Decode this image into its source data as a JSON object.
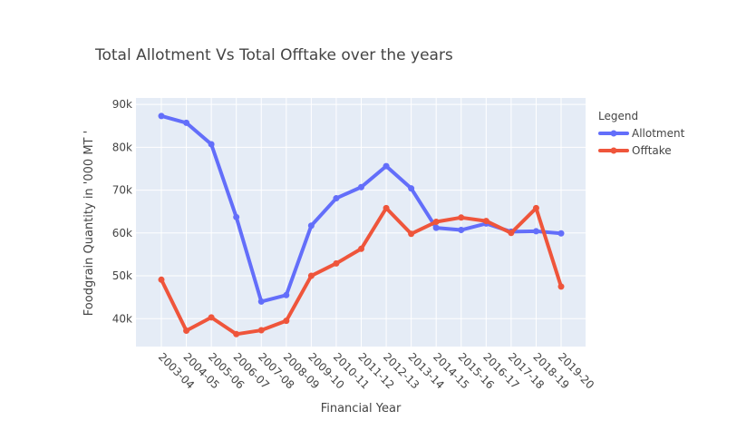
{
  "chart_data": {
    "type": "line",
    "title": "Total Allotment Vs Total Offtake over the years",
    "xlabel": "Financial Year",
    "ylabel": "Foodgrain Quantity in '000 MT '",
    "categories": [
      "2003-04",
      "2004-05",
      "2005-06",
      "2006-07",
      "2007-08",
      "2008-09",
      "2009-10",
      "2010-11",
      "2011-12",
      "2012-13",
      "2013-14",
      "2014-15",
      "2015-16",
      "2016-17",
      "2017-18",
      "2018-19",
      "2019-20"
    ],
    "ylim": [
      33500,
      91500
    ],
    "yticks": [
      {
        "value": 40000,
        "label": "40k"
      },
      {
        "value": 50000,
        "label": "50k"
      },
      {
        "value": 60000,
        "label": "60k"
      },
      {
        "value": 70000,
        "label": "70k"
      },
      {
        "value": 80000,
        "label": "80k"
      },
      {
        "value": 90000,
        "label": "90k"
      }
    ],
    "legend_title": "Legend",
    "legend_position": "top-right",
    "grid": true,
    "series": [
      {
        "name": "Allotment",
        "color": "#636efa",
        "values": [
          87300,
          85700,
          80700,
          63700,
          44000,
          45500,
          61700,
          68100,
          70700,
          75600,
          70400,
          61200,
          60700,
          62200,
          60300,
          60400,
          59900
        ]
      },
      {
        "name": "Offtake",
        "color": "#ef553b",
        "values": [
          49100,
          37200,
          40300,
          36400,
          37300,
          39500,
          50000,
          52900,
          56300,
          65800,
          59800,
          62600,
          63600,
          62800,
          60000,
          65800,
          47500
        ]
      }
    ]
  }
}
